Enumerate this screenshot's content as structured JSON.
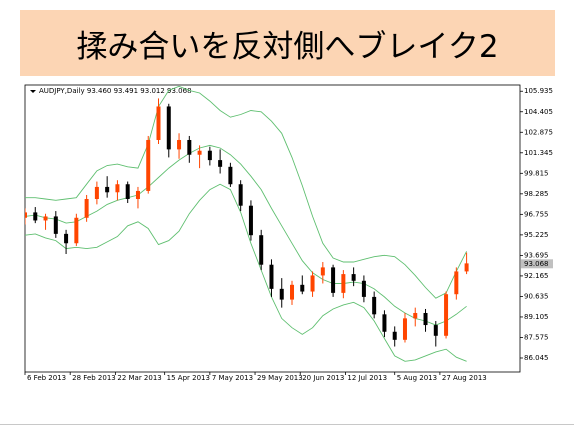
{
  "header": {
    "title": "揉み合いを反対側へブレイク2"
  },
  "chart_data": {
    "type": "candlestick",
    "title": "AUDJPY,Daily  93.460 93.491 93.012 93.068",
    "x": [
      "2013-02-06",
      "2013-02-11",
      "2013-02-16",
      "2013-02-21",
      "2013-02-26",
      "2013-03-03",
      "2013-03-08",
      "2013-03-13",
      "2013-03-18",
      "2013-03-23",
      "2013-03-28",
      "2013-04-02",
      "2013-04-07",
      "2013-04-12",
      "2013-04-17",
      "2013-04-22",
      "2013-04-27",
      "2013-05-02",
      "2013-05-07",
      "2013-05-12",
      "2013-05-17",
      "2013-05-22",
      "2013-05-27",
      "2013-06-01",
      "2013-06-06",
      "2013-06-11",
      "2013-06-16",
      "2013-06-21",
      "2013-06-26",
      "2013-07-01",
      "2013-07-06",
      "2013-07-11",
      "2013-07-16",
      "2013-07-21",
      "2013-07-26",
      "2013-07-31",
      "2013-08-05",
      "2013-08-10",
      "2013-08-15",
      "2013-08-20",
      "2013-08-25",
      "2013-08-30",
      "2013-09-04",
      "2013-09-09"
    ],
    "open": [
      96.5,
      96.9,
      96.3,
      96.6,
      95.3,
      94.6,
      96.5,
      97.9,
      98.8,
      98.4,
      99.0,
      97.9,
      98.5,
      102.3,
      104.8,
      101.6,
      102.3,
      101.2,
      101.5,
      100.8,
      100.3,
      99.0,
      97.4,
      95.2,
      93.0,
      91.2,
      90.4,
      91.5,
      91.0,
      92.2,
      92.8,
      90.9,
      92.3,
      91.8,
      90.6,
      89.3,
      88.0,
      87.4,
      89.0,
      89.4,
      88.5,
      87.7,
      90.8,
      92.5
    ],
    "high": [
      97.2,
      97.3,
      96.8,
      97.0,
      95.6,
      96.8,
      98.2,
      99.2,
      99.6,
      99.3,
      99.2,
      98.8,
      102.6,
      105.4,
      105.0,
      102.8,
      102.6,
      101.9,
      101.8,
      101.6,
      100.6,
      99.3,
      97.8,
      95.6,
      93.4,
      92.0,
      91.8,
      92.2,
      92.5,
      93.2,
      93.0,
      92.6,
      92.8,
      92.2,
      91.0,
      89.6,
      88.4,
      89.4,
      89.8,
      89.7,
      88.8,
      91.0,
      92.8,
      93.9
    ],
    "low": [
      96.0,
      96.1,
      95.6,
      95.0,
      93.8,
      94.4,
      96.2,
      97.5,
      98.0,
      97.8,
      97.6,
      97.2,
      98.3,
      102.0,
      101.0,
      100.9,
      100.6,
      100.2,
      100.4,
      99.8,
      98.8,
      97.0,
      94.8,
      92.6,
      90.6,
      89.8,
      90.0,
      90.8,
      90.6,
      91.6,
      90.6,
      90.5,
      91.4,
      90.2,
      89.0,
      87.6,
      86.9,
      87.2,
      88.4,
      88.0,
      86.9,
      87.5,
      90.4,
      92.3
    ],
    "close": [
      96.9,
      96.3,
      96.6,
      95.3,
      94.6,
      96.5,
      97.9,
      98.8,
      98.4,
      99.0,
      97.9,
      98.5,
      102.3,
      104.8,
      101.6,
      102.3,
      101.2,
      101.5,
      100.8,
      100.3,
      99.0,
      97.4,
      95.2,
      93.0,
      91.2,
      90.4,
      91.5,
      91.0,
      92.2,
      92.8,
      90.9,
      92.3,
      91.8,
      90.6,
      89.3,
      88.0,
      87.4,
      89.0,
      89.4,
      88.5,
      87.7,
      90.8,
      92.5,
      93.1
    ],
    "up_color": "#ff4500",
    "down_color": "#000000",
    "lines": [
      {
        "color": "#5fbf70",
        "values": [
          98.0,
          98.0,
          97.9,
          97.8,
          97.9,
          98.0,
          99.0,
          100.0,
          100.4,
          100.5,
          100.3,
          100.2,
          102.0,
          104.8,
          106.0,
          106.3,
          106.0,
          105.8,
          105.2,
          104.5,
          104.0,
          104.2,
          104.5,
          104.4,
          103.7,
          102.8,
          101.0,
          98.9,
          96.6,
          94.6,
          93.5,
          93.2,
          93.2,
          93.4,
          93.6,
          93.7,
          93.6,
          93.0,
          92.2,
          91.3,
          90.5,
          90.9,
          92.5,
          94.0
        ]
      },
      {
        "color": "#5fbf70",
        "values": [
          96.6,
          96.7,
          96.5,
          96.4,
          96.1,
          96.2,
          96.6,
          97.0,
          97.5,
          97.8,
          98.0,
          98.2,
          98.8,
          99.5,
          100.2,
          100.8,
          101.3,
          101.7,
          101.9,
          101.7,
          101.2,
          100.5,
          99.6,
          98.6,
          97.2,
          95.9,
          94.6,
          93.3,
          92.4,
          91.9,
          91.6,
          91.6,
          91.7,
          91.6,
          91.2,
          90.6,
          89.9,
          89.4,
          89.0,
          88.8,
          88.5,
          88.8,
          89.3,
          89.9
        ]
      },
      {
        "color": "#5fbf70",
        "values": [
          95.2,
          95.3,
          95.0,
          94.8,
          94.2,
          94.3,
          94.2,
          94.3,
          94.7,
          95.1,
          95.9,
          96.2,
          95.7,
          94.5,
          94.8,
          95.5,
          96.8,
          97.8,
          98.6,
          99.0,
          98.6,
          96.9,
          94.6,
          92.6,
          90.6,
          89.0,
          88.3,
          87.8,
          88.3,
          89.2,
          89.7,
          90.0,
          90.2,
          89.8,
          88.8,
          87.5,
          86.2,
          85.8,
          85.9,
          86.2,
          86.5,
          86.7,
          86.1,
          85.8
        ]
      }
    ],
    "last_price": 93.068,
    "xlim": [
      "2013-02-06",
      "2013-10-05"
    ],
    "xticks": [
      {
        "value": "2013-02-06",
        "label": "6 Feb 2013"
      },
      {
        "value": "2013-02-28",
        "label": "28 Feb 2013"
      },
      {
        "value": "2013-03-22",
        "label": "22 Mar 2013"
      },
      {
        "value": "2013-04-15",
        "label": "15 Apr 2013"
      },
      {
        "value": "2013-05-07",
        "label": "7 May 2013"
      },
      {
        "value": "2013-05-29",
        "label": "29 May 2013"
      },
      {
        "value": "2013-06-20",
        "label": "20 Jun 2013"
      },
      {
        "value": "2013-07-12",
        "label": "12 Jul 2013"
      },
      {
        "value": "2013-08-05",
        "label": "5 Aug 2013"
      },
      {
        "value": "2013-08-27",
        "label": "27 Aug 2013"
      }
    ],
    "ylim": [
      85.0,
      106.4
    ],
    "yticks": [
      105.935,
      104.405,
      102.875,
      101.345,
      99.815,
      98.285,
      96.755,
      95.225,
      93.695,
      92.165,
      90.635,
      89.105,
      87.575,
      86.045
    ]
  }
}
